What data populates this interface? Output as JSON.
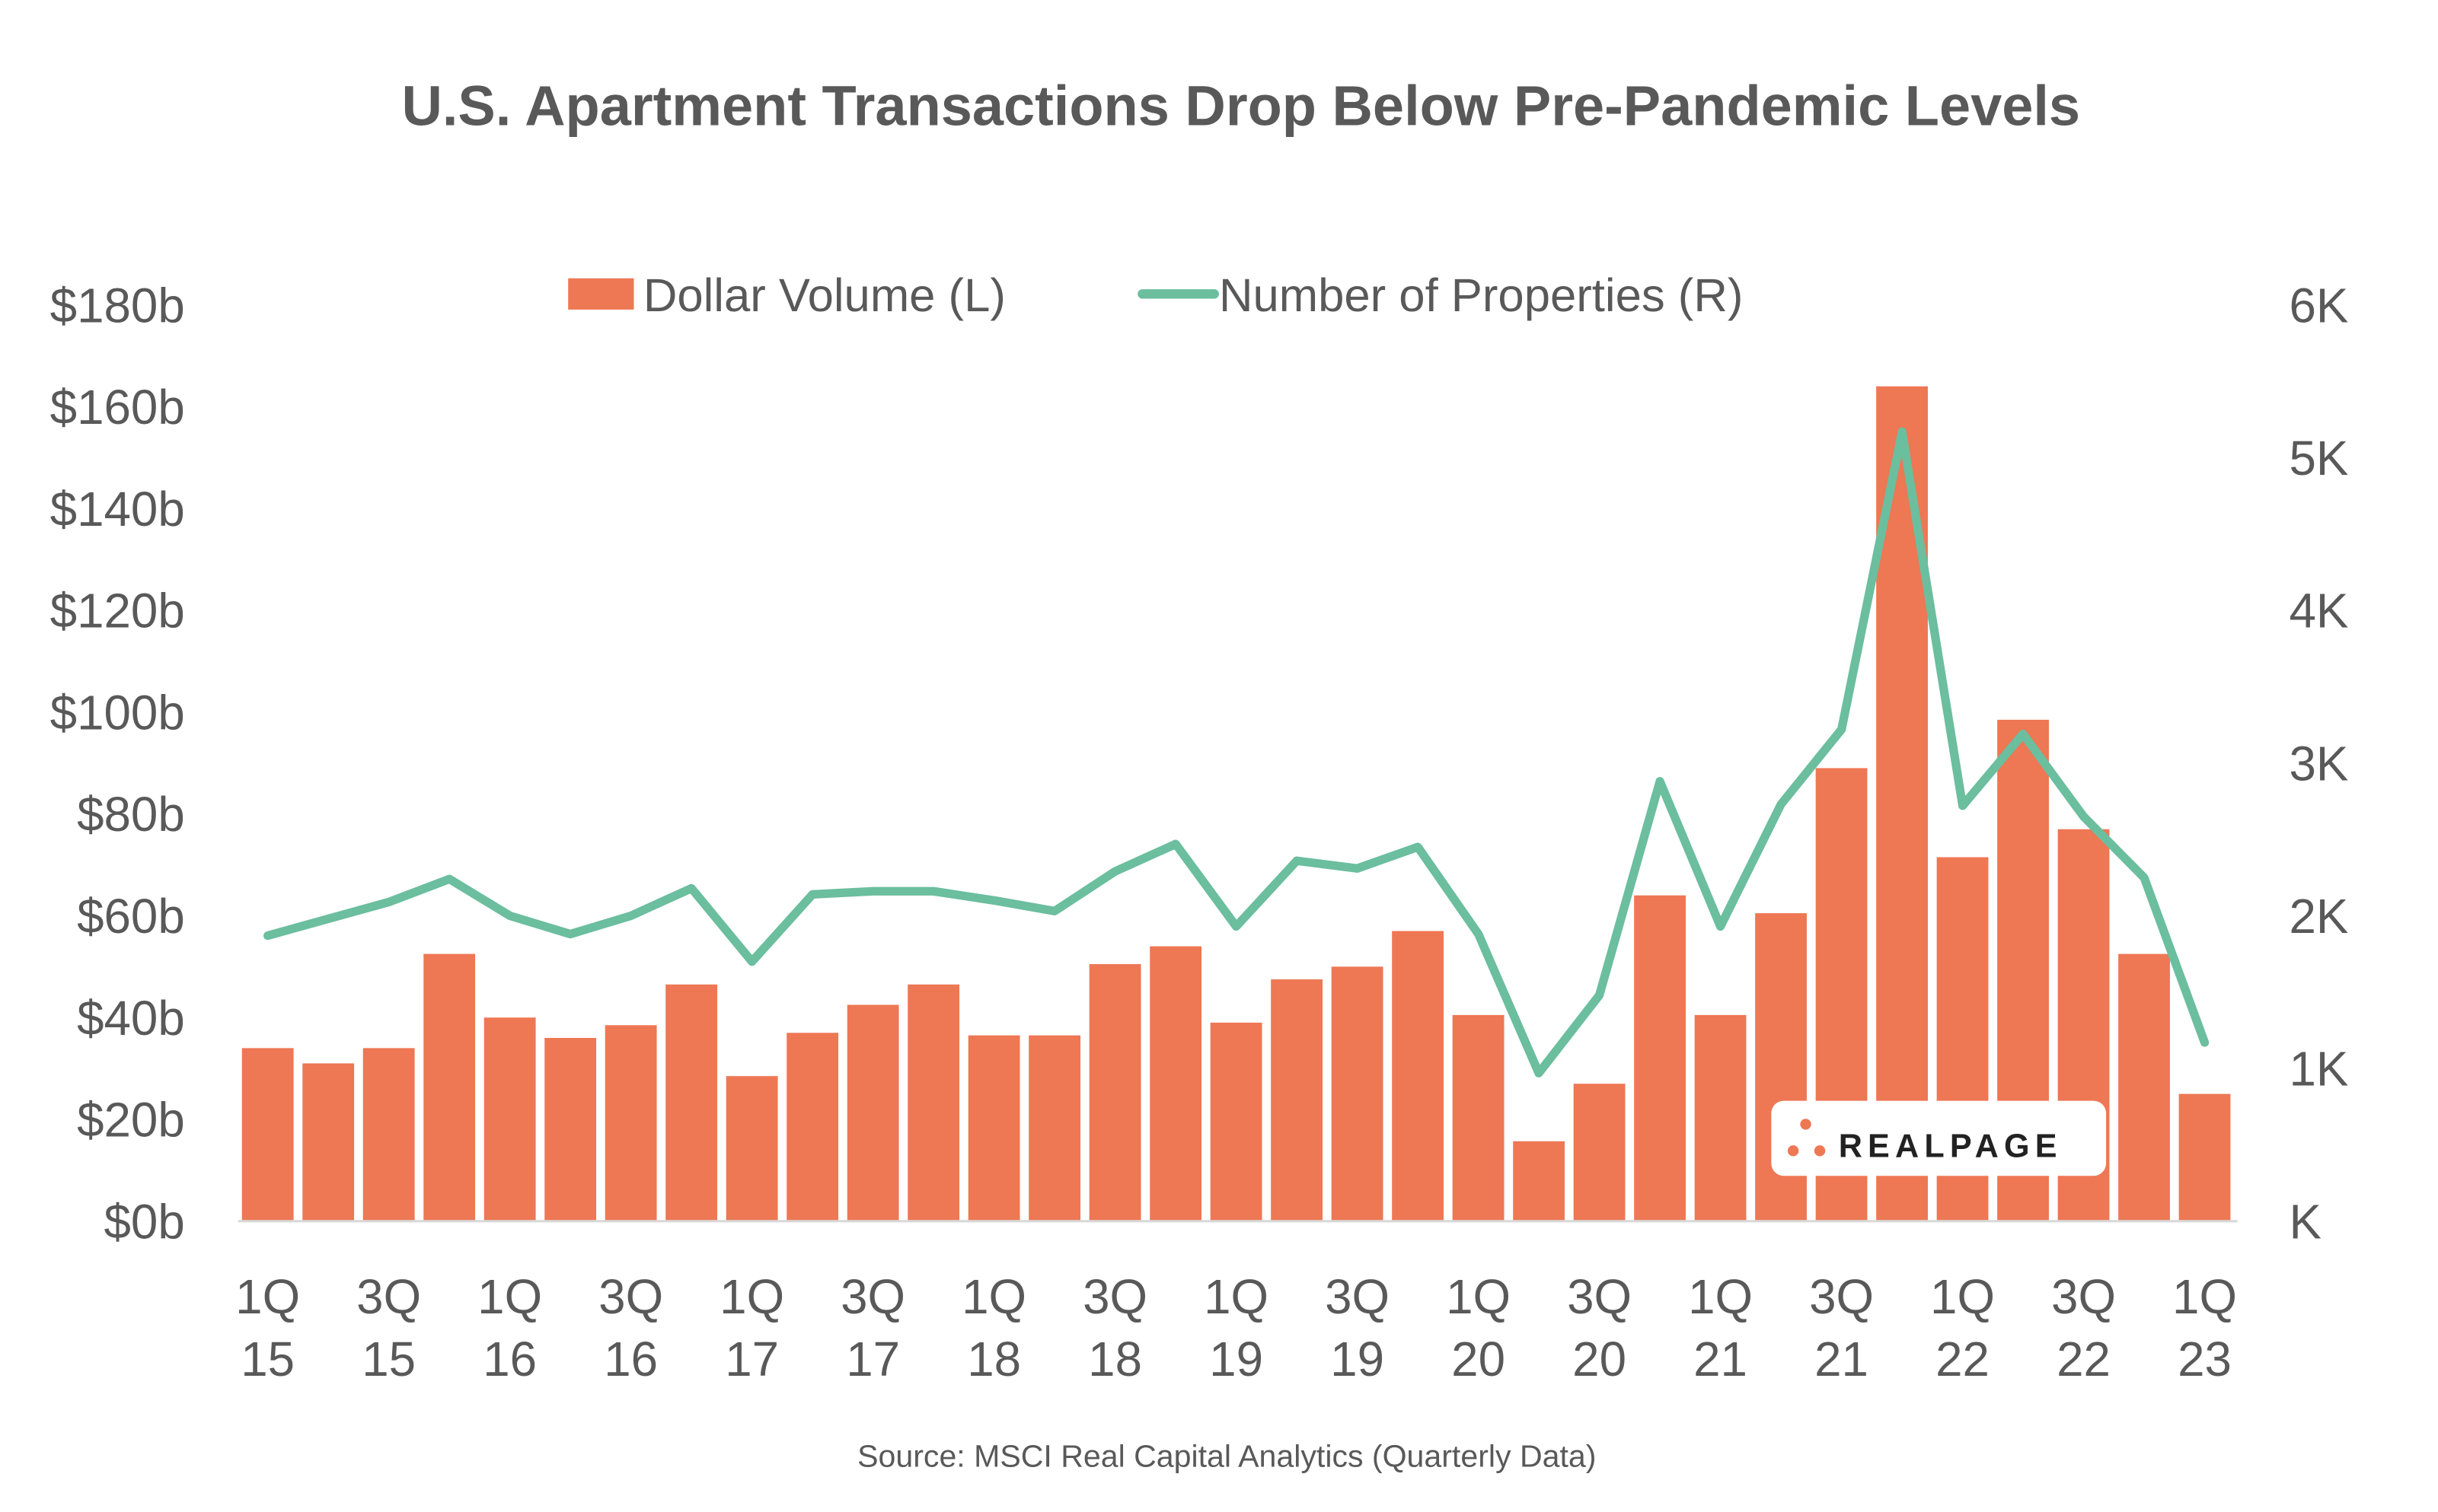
{
  "chart_data": {
    "type": "bar+line",
    "title": "U.S. Apartment Transactions Drop Below Pre-Pandemic Levels",
    "source": "Source: MSCI Real Capital Analytics (Quarterly Data)",
    "legend_position": "top-center",
    "grid": false,
    "quarters": [
      "1Q15",
      "2Q15",
      "3Q15",
      "4Q15",
      "1Q16",
      "2Q16",
      "3Q16",
      "4Q16",
      "1Q17",
      "2Q17",
      "3Q17",
      "4Q17",
      "1Q18",
      "2Q18",
      "3Q18",
      "4Q18",
      "1Q19",
      "2Q19",
      "3Q19",
      "4Q19",
      "1Q20",
      "2Q20",
      "3Q20",
      "4Q20",
      "1Q21",
      "2Q21",
      "3Q21",
      "4Q21",
      "1Q22",
      "2Q22",
      "3Q22",
      "4Q22",
      "1Q23"
    ],
    "x_tick_labels": [
      [
        "1Q",
        "15"
      ],
      [
        "3Q",
        "15"
      ],
      [
        "1Q",
        "16"
      ],
      [
        "3Q",
        "16"
      ],
      [
        "1Q",
        "17"
      ],
      [
        "3Q",
        "17"
      ],
      [
        "1Q",
        "18"
      ],
      [
        "3Q",
        "18"
      ],
      [
        "1Q",
        "19"
      ],
      [
        "3Q",
        "19"
      ],
      [
        "1Q",
        "20"
      ],
      [
        "3Q",
        "20"
      ],
      [
        "1Q",
        "21"
      ],
      [
        "3Q",
        "21"
      ],
      [
        "1Q",
        "22"
      ],
      [
        "3Q",
        "22"
      ],
      [
        "1Q",
        "23"
      ]
    ],
    "y_left": {
      "ylim": [
        0,
        180
      ],
      "ticks": [
        "$0b",
        "$20b",
        "$40b",
        "$60b",
        "$80b",
        "$100b",
        "$120b",
        "$140b",
        "$160b",
        "$180b"
      ]
    },
    "y_right": {
      "ylim": [
        0,
        6
      ],
      "ticks": [
        "K",
        "1K",
        "2K",
        "3K",
        "4K",
        "5K",
        "6K"
      ]
    },
    "series": [
      {
        "name": "Dollar Volume (L)",
        "type": "bar",
        "axis": "left",
        "color": "#EE7754",
        "values": [
          34,
          31,
          34,
          52.5,
          40,
          36,
          38.5,
          46.5,
          28.5,
          37,
          42.5,
          46.5,
          36.5,
          36.5,
          50.5,
          54,
          39,
          47.5,
          50,
          57,
          40.5,
          15.7,
          27,
          64,
          40.5,
          60.5,
          89,
          164,
          71.5,
          98.5,
          77,
          52.5,
          25
        ]
      },
      {
        "name": "Number of Properties (R)",
        "type": "line",
        "axis": "right",
        "color": "#6BBE9E",
        "values": [
          1.87,
          1.98,
          2.09,
          2.24,
          2.0,
          1.88,
          2.0,
          2.18,
          1.7,
          2.14,
          2.16,
          2.16,
          2.1,
          2.03,
          2.29,
          2.47,
          1.93,
          2.36,
          2.31,
          2.45,
          1.88,
          0.97,
          1.48,
          2.88,
          1.93,
          2.73,
          3.22,
          5.17,
          2.72,
          3.19,
          2.65,
          2.25,
          1.17
        ]
      }
    ]
  },
  "logo": {
    "text": "REALPAGE"
  }
}
